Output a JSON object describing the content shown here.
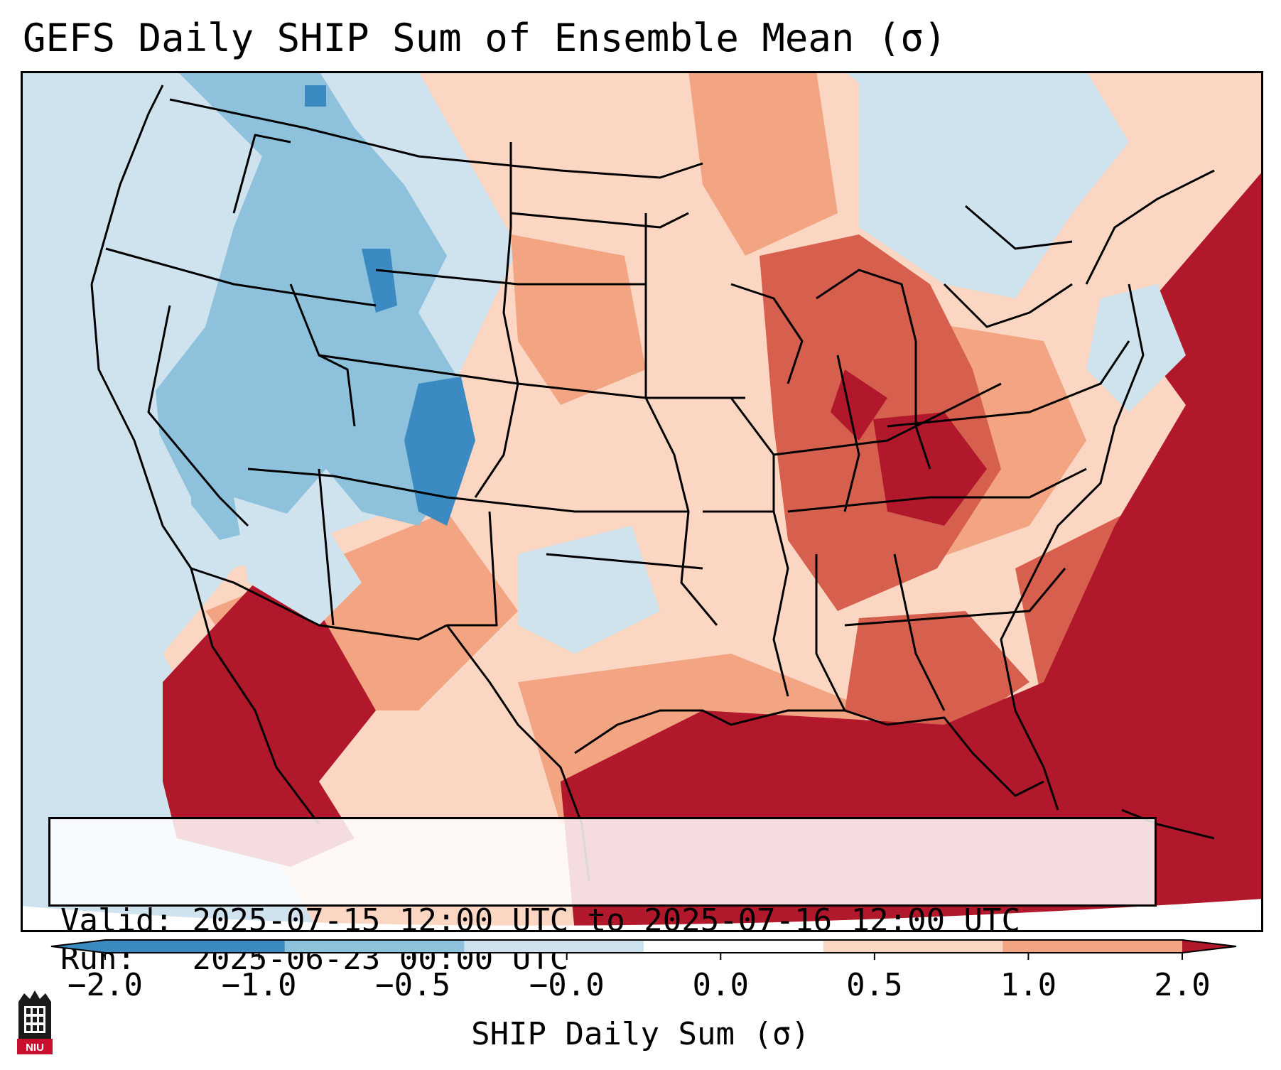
{
  "title": "GEFS Daily SHIP Sum of Ensemble Mean (σ)",
  "valid": {
    "label": "Valid:",
    "value": "2025-07-15 12:00 UTC to 2025-07-16 12:00 UTC"
  },
  "run": {
    "label": "Run:",
    "value": "2025-06-23 00:00 UTC"
  },
  "colorbar": {
    "label": "SHIP Daily Sum (σ)",
    "ticks": [
      "−2.0",
      "−1.0",
      "−0.5",
      "−0.0",
      "0.0",
      "0.5",
      "1.0",
      "2.0"
    ],
    "colors": [
      "#3b8bc2",
      "#8ec1dc",
      "#cfe3ef",
      "#ffffff",
      "#fbd7c3",
      "#f2a483",
      "#d6604d",
      "#b2182b"
    ],
    "extend": "both"
  },
  "map": {
    "region": "Contiguous United States",
    "field_colors": {
      "strong_negative": "#3b8bc2",
      "moderate_negative": "#8ec1dc",
      "weak_negative": "#cfe3ef",
      "weak_positive": "#fbd7c3",
      "moderate_positive": "#f2a483",
      "strong_positive": "#d6604d",
      "extreme_positive": "#b2182b"
    }
  },
  "logo": {
    "text": "NIU",
    "icon": "university-tower-icon"
  }
}
